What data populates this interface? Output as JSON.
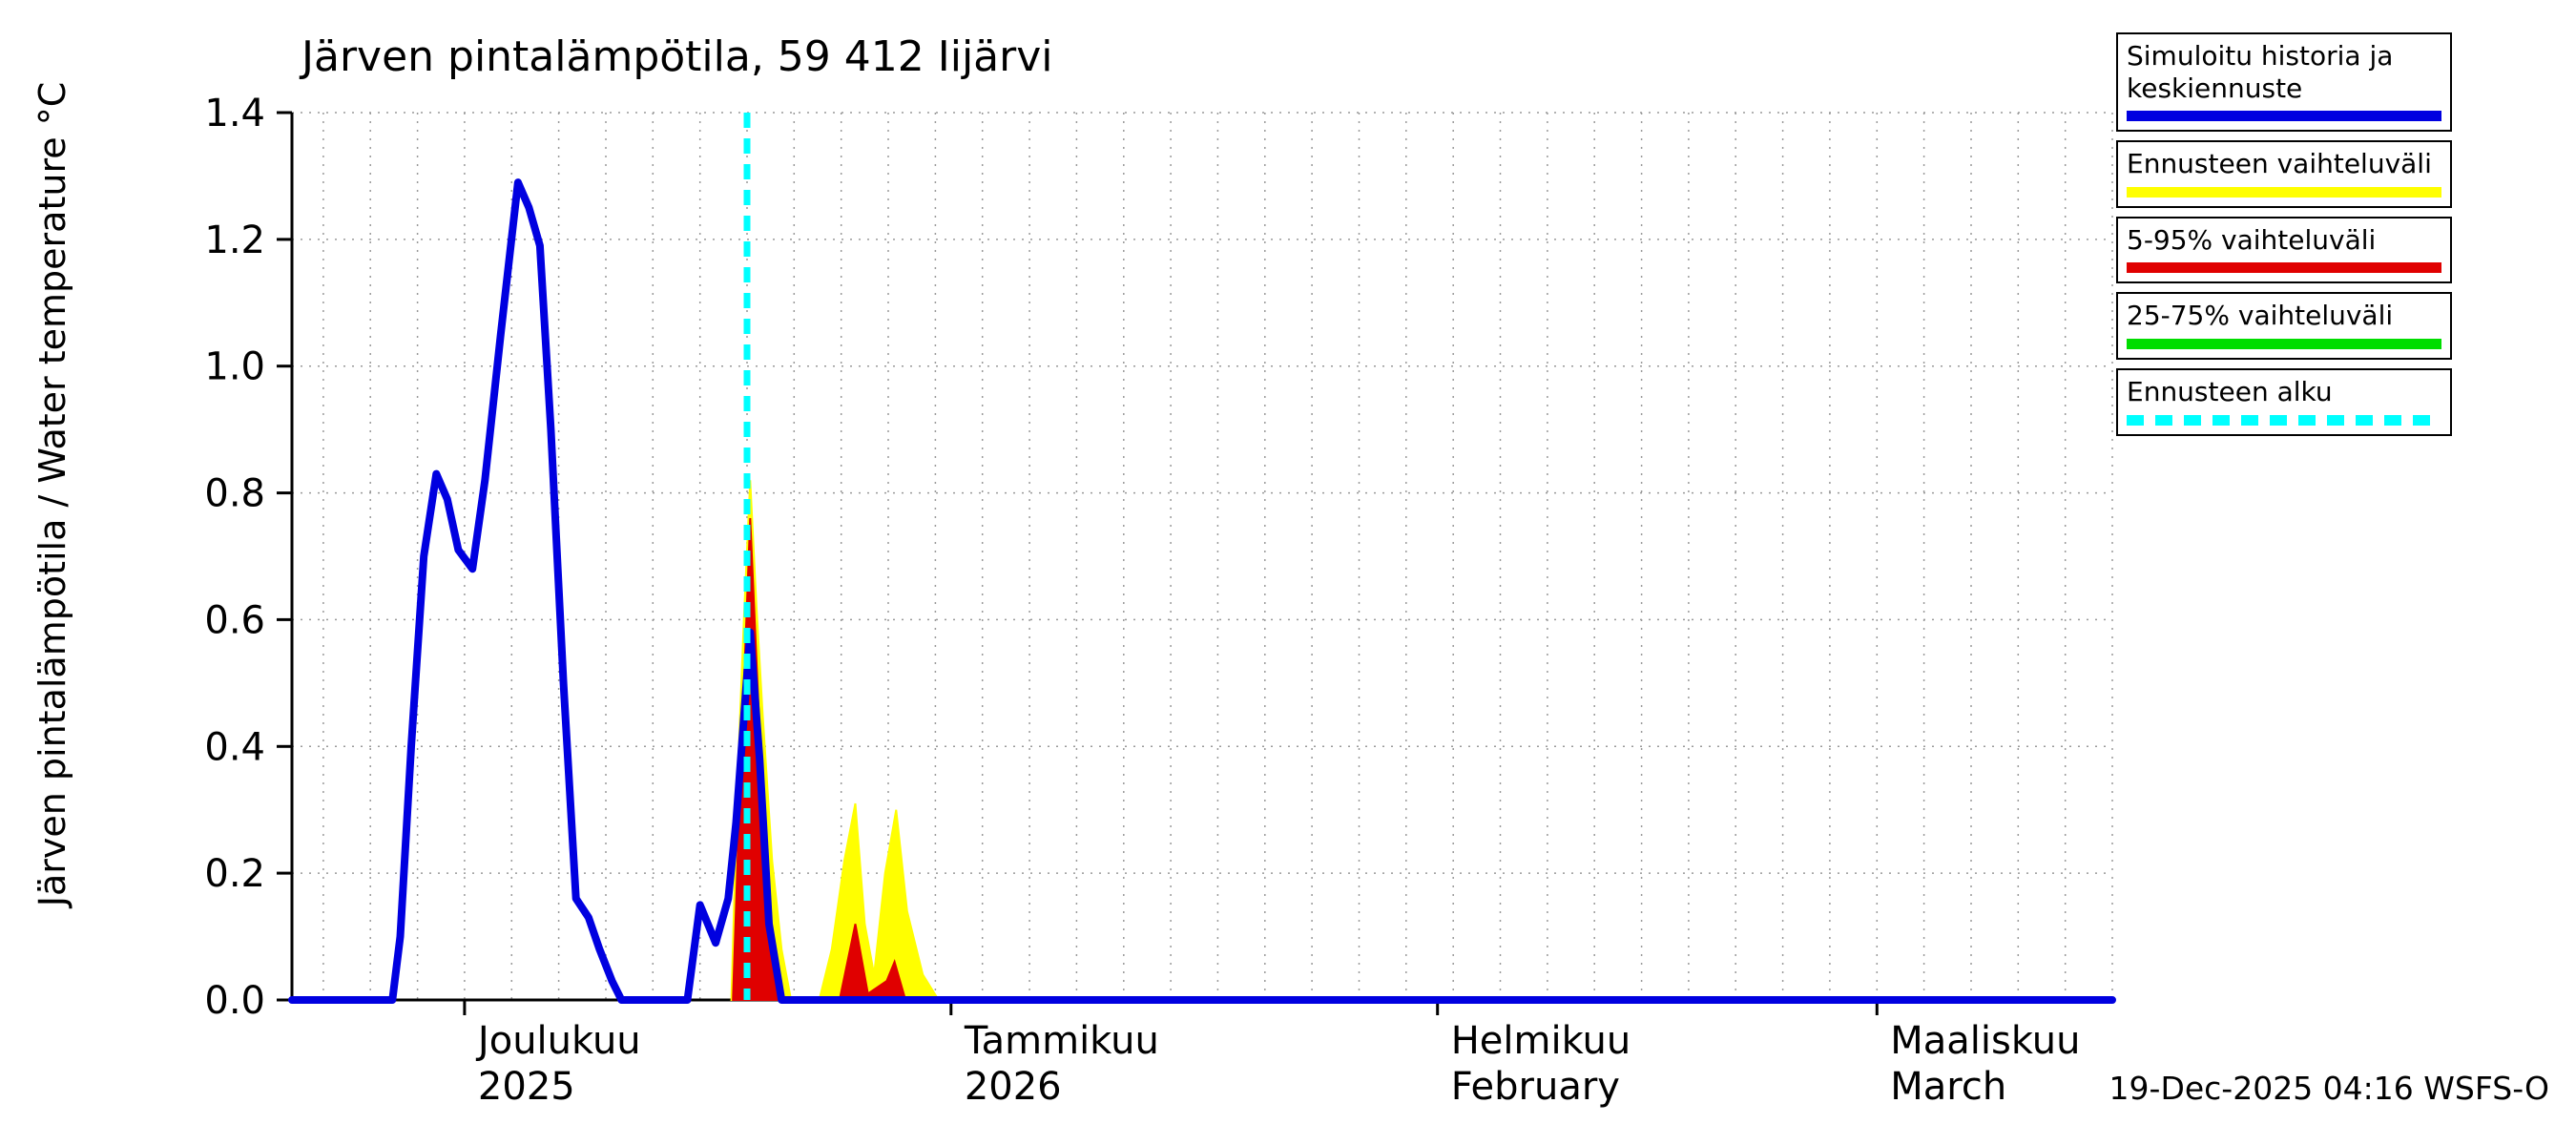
{
  "title": "Järven pintalämpötila, 59 412 Iijärvi",
  "ylabel": "Järven pintalämpötila / Water temperature °C",
  "footer": "19-Dec-2025 04:16 WSFS-O",
  "legend": {
    "items": [
      {
        "label": "Simuloitu historia ja keskiennuste",
        "color": "#0000e0",
        "style": "solid"
      },
      {
        "label": "Ennusteen vaihteluväli",
        "color": "#ffff00",
        "style": "solid"
      },
      {
        "label": "5-95% vaihteluväli",
        "color": "#e00000",
        "style": "solid"
      },
      {
        "label": "25-75% vaihteluväli",
        "color": "#00dd00",
        "style": "solid"
      },
      {
        "label": "Ennusteen alku",
        "color": "#00ffff",
        "style": "dashed"
      }
    ]
  },
  "chart_data": {
    "type": "line",
    "title": "Järven pintalämpötila, 59 412 Iijärvi",
    "xlabel": "",
    "ylabel": "Järven pintalämpötila / Water temperature °C",
    "ylim": [
      0.0,
      1.4
    ],
    "yticks": [
      {
        "value": 0.0,
        "label": "0.0"
      },
      {
        "value": 0.2,
        "label": "0.2"
      },
      {
        "value": 0.4,
        "label": "0.4"
      },
      {
        "value": 0.6,
        "label": "0.6"
      },
      {
        "value": 0.8,
        "label": "0.8"
      },
      {
        "value": 1.0,
        "label": "1.0"
      },
      {
        "value": 1.2,
        "label": "1.2"
      },
      {
        "value": 1.4,
        "label": "1.4"
      }
    ],
    "x_unit": "days since 2025-12-01",
    "x_range": [
      -11,
      105
    ],
    "x_ticks": [
      {
        "day": 0,
        "line1": "Joulukuu",
        "line2": "2025"
      },
      {
        "day": 31,
        "line1": "Tammikuu",
        "line2": "2026"
      },
      {
        "day": 62,
        "line1": "Helmikuu",
        "line2": "February"
      },
      {
        "day": 90,
        "line1": "Maaliskuu",
        "line2": "March"
      }
    ],
    "grid": {
      "y_every": 0.2,
      "x_every_days": 3
    },
    "forecast_start": {
      "day": 18,
      "date": "2025-12-19",
      "color": "#00ffff"
    },
    "series": [
      {
        "name": "Simuloitu historia ja keskiennuste",
        "type": "line",
        "color": "#0000e0",
        "points": [
          [
            -11,
            0
          ],
          [
            -4.6,
            0
          ],
          [
            -4.1,
            0.1
          ],
          [
            -3.4,
            0.4
          ],
          [
            -2.6,
            0.7
          ],
          [
            -1.8,
            0.83
          ],
          [
            -1.1,
            0.79
          ],
          [
            -0.4,
            0.71
          ],
          [
            0.5,
            0.68
          ],
          [
            1.3,
            0.82
          ],
          [
            2.3,
            1.05
          ],
          [
            3.4,
            1.29
          ],
          [
            4.1,
            1.25
          ],
          [
            4.8,
            1.19
          ],
          [
            5.5,
            0.9
          ],
          [
            6.3,
            0.5
          ],
          [
            7.1,
            0.16
          ],
          [
            7.9,
            0.13
          ],
          [
            8.6,
            0.08
          ],
          [
            9.4,
            0.03
          ],
          [
            10,
            0
          ],
          [
            14.2,
            0
          ],
          [
            15,
            0.15
          ],
          [
            16,
            0.09
          ],
          [
            16.8,
            0.16
          ],
          [
            17.3,
            0.28
          ],
          [
            18.2,
            0.58
          ],
          [
            18.8,
            0.38
          ],
          [
            19.4,
            0.12
          ],
          [
            20.2,
            0
          ],
          [
            105,
            0
          ]
        ]
      },
      {
        "name": "Ennusteen vaihteluväli",
        "type": "area",
        "color": "#ffff00",
        "regions": [
          [
            [
              17,
              0
            ],
            [
              17.4,
              0.35
            ],
            [
              17.8,
              0.6
            ],
            [
              18.2,
              0.82
            ],
            [
              18.6,
              0.62
            ],
            [
              19,
              0.45
            ],
            [
              19.6,
              0.22
            ],
            [
              20.2,
              0.08
            ],
            [
              20.8,
              0
            ]
          ],
          [
            [
              22.6,
              0
            ],
            [
              23.4,
              0.08
            ],
            [
              24.2,
              0.22
            ],
            [
              24.9,
              0.31
            ],
            [
              25.5,
              0.12
            ],
            [
              26.1,
              0.04
            ],
            [
              26.8,
              0.2
            ],
            [
              27.5,
              0.3
            ],
            [
              28.2,
              0.14
            ],
            [
              29.2,
              0.04
            ],
            [
              30.2,
              0
            ]
          ]
        ]
      },
      {
        "name": "5-95% vaihteluväli",
        "type": "area",
        "color": "#e00000",
        "regions": [
          [
            [
              17.1,
              0
            ],
            [
              17.5,
              0.3
            ],
            [
              18.2,
              0.76
            ],
            [
              18.7,
              0.48
            ],
            [
              19.3,
              0.14
            ],
            [
              20,
              0
            ]
          ],
          [
            [
              23.9,
              0
            ],
            [
              24.9,
              0.12
            ],
            [
              25.7,
              0.01
            ],
            [
              26.9,
              0.03
            ],
            [
              27.4,
              0.06
            ],
            [
              28.1,
              0
            ]
          ]
        ]
      },
      {
        "name": "25-75% vaihteluväli",
        "type": "area",
        "color": "#00dd00",
        "regions": []
      }
    ]
  }
}
